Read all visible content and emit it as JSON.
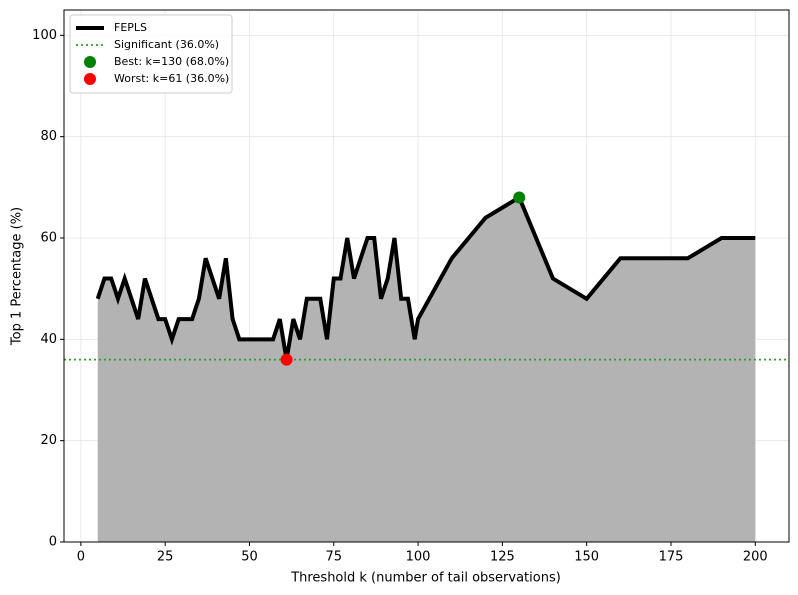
{
  "chart_data": {
    "type": "line",
    "xlabel": "Threshold k (number of tail observations)",
    "ylabel": "Top 1 Percentage (%)",
    "x": [
      5,
      7,
      9,
      11,
      13,
      17,
      19,
      23,
      25,
      27,
      29,
      33,
      35,
      37,
      41,
      43,
      45,
      47,
      57,
      59,
      61,
      63,
      65,
      67,
      71,
      73,
      75,
      77,
      79,
      81,
      85,
      87,
      89,
      91,
      93,
      95,
      97,
      99,
      100,
      110,
      120,
      130,
      140,
      150,
      160,
      170,
      180,
      190,
      200
    ],
    "series": [
      {
        "name": "FEPLS",
        "color": "#000000",
        "values": [
          48,
          52,
          52,
          48,
          52,
          44,
          52,
          44,
          44,
          40,
          44,
          44,
          48,
          56,
          48,
          56,
          44,
          40,
          40,
          44,
          36,
          44,
          40,
          48,
          48,
          40,
          52,
          52,
          60,
          52,
          60,
          60,
          48,
          52,
          60,
          48,
          48,
          40,
          44,
          56,
          64,
          68,
          52,
          48,
          56,
          56,
          56,
          60,
          60
        ]
      }
    ],
    "fill_color": "#b3b3b3",
    "threshold": {
      "name": "Significant (36.0%)",
      "value": 36,
      "color": "#2ca02c"
    },
    "markers": [
      {
        "name": "Best: k=130 (68.0%)",
        "x": 130,
        "y": 68,
        "color": "#008000"
      },
      {
        "name": "Worst: k=61 (36.0%)",
        "x": 61,
        "y": 36,
        "color": "#ff0000"
      }
    ],
    "xlim": [
      -5,
      210
    ],
    "ylim": [
      0,
      105
    ],
    "xticks": [
      0,
      25,
      50,
      75,
      100,
      125,
      150,
      175,
      200
    ],
    "yticks": [
      0,
      20,
      40,
      60,
      80,
      100
    ],
    "grid": true,
    "legend": "upper left"
  }
}
